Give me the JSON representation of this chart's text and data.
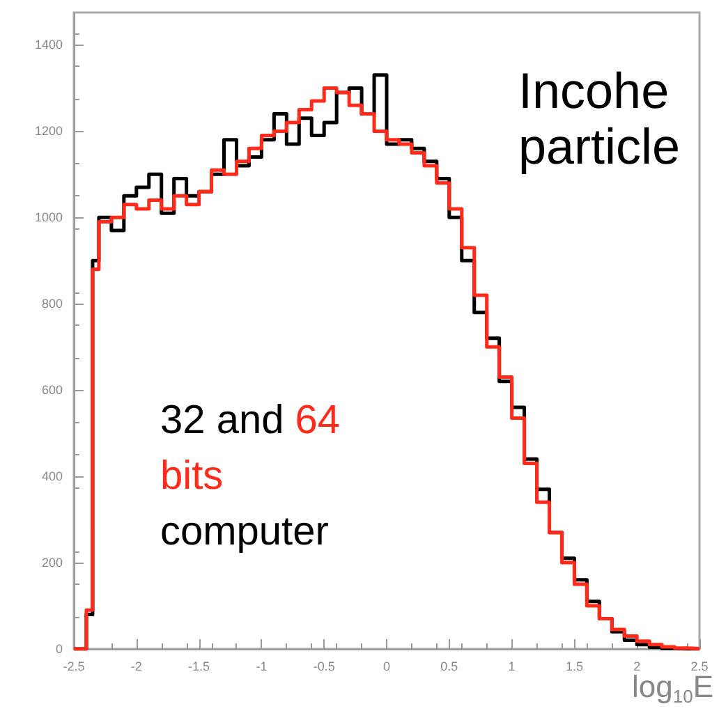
{
  "chart_data": {
    "type": "histogram",
    "xlabel": "log$_{10}$E",
    "annotations": [
      "32 and",
      "64 bits",
      "computer",
      "Incohe particle"
    ],
    "bins": [
      -2.5,
      -2.4,
      -2.35,
      -2.3,
      -2.2,
      -2.1,
      -2.0,
      -1.9,
      -1.8,
      -1.7,
      -1.6,
      -1.5,
      -1.4,
      -1.3,
      -1.2,
      -1.1,
      -1.0,
      -0.9,
      -0.8,
      -0.7,
      -0.6,
      -0.5,
      -0.4,
      -0.3,
      -0.2,
      -0.1,
      0.0,
      0.1,
      0.2,
      0.3,
      0.4,
      0.5,
      0.6,
      0.7,
      0.8,
      0.9,
      1.0,
      1.1,
      1.2,
      1.3,
      1.4,
      1.5,
      1.6,
      1.7,
      1.8,
      1.9,
      2.0,
      2.1,
      2.2,
      2.3,
      2.4,
      2.5
    ],
    "series": [
      {
        "color": "#000000",
        "values": [
          0,
          80,
          900,
          1000,
          970,
          1050,
          1070,
          1100,
          1010,
          1090,
          1050,
          1060,
          1100,
          1180,
          1120,
          1140,
          1180,
          1240,
          1170,
          1230,
          1190,
          1220,
          1290,
          1300,
          1240,
          1330,
          1170,
          1180,
          1160,
          1130,
          1090,
          1000,
          900,
          780,
          720,
          620,
          560,
          440,
          370,
          270,
          210,
          160,
          110,
          70,
          40,
          20,
          10,
          4,
          1,
          0,
          0
        ]
      },
      {
        "color": "#ff2a1a",
        "values": [
          0,
          90,
          880,
          990,
          1000,
          1030,
          1020,
          1040,
          1020,
          1050,
          1030,
          1060,
          1110,
          1100,
          1130,
          1160,
          1190,
          1200,
          1220,
          1250,
          1270,
          1300,
          1290,
          1260,
          1240,
          1200,
          1180,
          1170,
          1150,
          1120,
          1080,
          1020,
          930,
          820,
          700,
          630,
          535,
          430,
          340,
          270,
          200,
          150,
          100,
          70,
          45,
          30,
          18,
          10,
          5,
          2,
          1
        ]
      }
    ],
    "xlim": [
      -2.5,
      2.5
    ],
    "xticks": [
      -2.5,
      -2,
      -1.5,
      -1,
      -0.5,
      0,
      0.5,
      1,
      1.5,
      2,
      2.5
    ],
    "ylim": [
      0,
      1475
    ],
    "yticks": [
      0,
      200,
      400,
      600,
      800,
      1000,
      1200,
      1400
    ],
    "grid": false
  }
}
